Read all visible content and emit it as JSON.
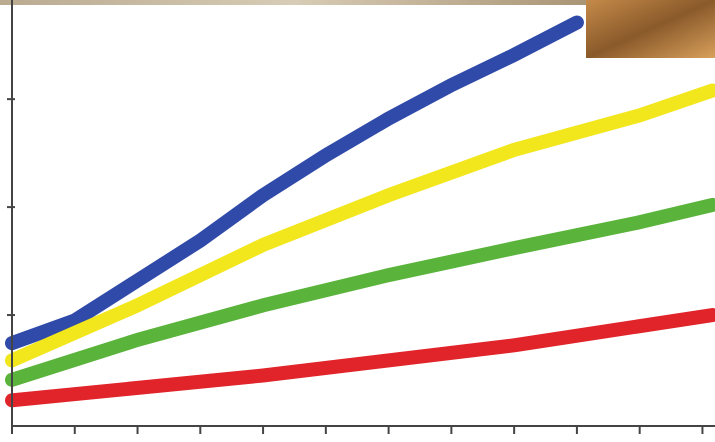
{
  "chart_data": {
    "type": "line",
    "xlim": [
      0,
      11.2
    ],
    "xticks": [
      0,
      1,
      2,
      3,
      4,
      5,
      6,
      7,
      8,
      9,
      10,
      11
    ],
    "ylim": [
      0,
      3.9
    ],
    "yticks": [
      1,
      2,
      3
    ],
    "series": [
      {
        "color": "#2f4aa8",
        "x": [
          0,
          1,
          2,
          3,
          4,
          5,
          6,
          7,
          8,
          9
        ],
        "values": [
          0.74,
          0.95,
          1.32,
          1.69,
          2.11,
          2.48,
          2.82,
          3.13,
          3.41,
          3.71
        ]
      },
      {
        "color": "#f2e61c",
        "x": [
          0,
          2,
          4,
          6,
          8,
          10,
          11.16
        ],
        "values": [
          0.58,
          1.09,
          1.65,
          2.11,
          2.53,
          2.85,
          3.08
        ]
      },
      {
        "color": "#5ab33a",
        "x": [
          0,
          2,
          4,
          6,
          8,
          10,
          11.16
        ],
        "values": [
          0.4,
          0.77,
          1.09,
          1.37,
          1.62,
          1.86,
          2.02
        ]
      },
      {
        "color": "#e0242a",
        "x": [
          0,
          4,
          8,
          11.16
        ],
        "values": [
          0.21,
          0.44,
          0.72,
          1.0
        ]
      }
    ]
  }
}
